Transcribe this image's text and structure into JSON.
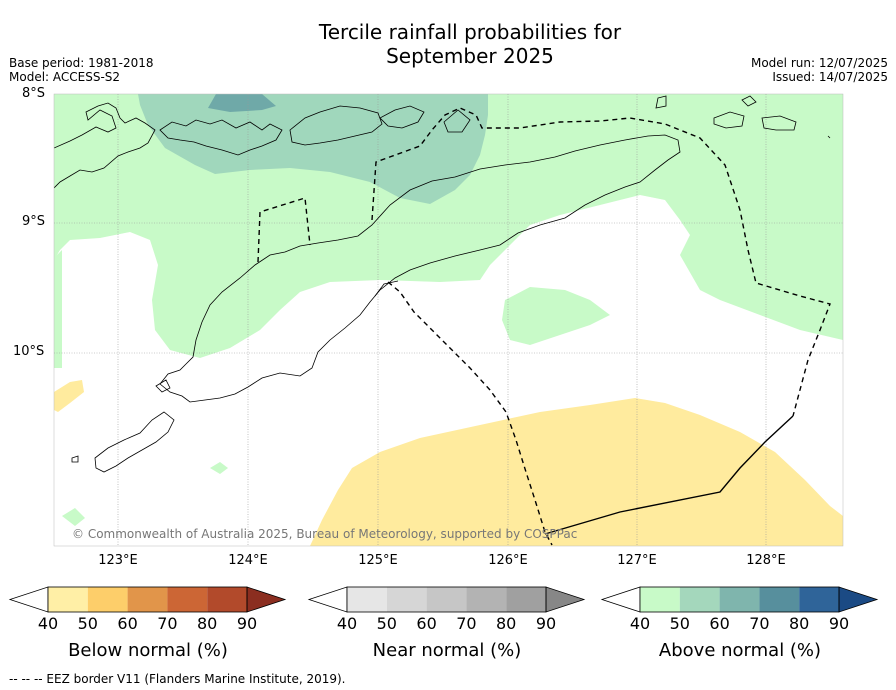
{
  "title": "Tercile rainfall probabilities for\nSeptember 2025",
  "meta_left": "Base period: 1981-2018\nModel: ACCESS-S2",
  "meta_right": "Model run: 12/07/2025\nIssued: 14/07/2025",
  "map": {
    "lat_labels": [
      "8°S",
      "9°S",
      "10°S"
    ],
    "lon_labels": [
      "123°E",
      "124°E",
      "125°E",
      "126°E",
      "127°E",
      "128°E"
    ],
    "copyright": "© Commonwealth of Australia 2025, Bureau of Meteorology, supported by COSPPac",
    "colors": {
      "above_40_50": "#c8fac8",
      "above_50_60": "#a0d7bc",
      "above_60_70": "#6fa9a8",
      "below_40_50": "#ffeb9e",
      "coastline": "#000000",
      "eez_border": "#000000"
    }
  },
  "colorbars": [
    {
      "title": "Below normal (%)",
      "ticks": [
        "40",
        "50",
        "60",
        "70",
        "80",
        "90"
      ],
      "colors": [
        "#ffffff",
        "#ffefa6",
        "#fdce6a",
        "#e1954a",
        "#cc6635",
        "#b24a2b",
        "#8b2e20"
      ]
    },
    {
      "title": "Near normal (%)",
      "ticks": [
        "40",
        "50",
        "60",
        "70",
        "80",
        "90"
      ],
      "colors": [
        "#ffffff",
        "#e6e6e6",
        "#d6d6d6",
        "#c6c6c6",
        "#b3b3b3",
        "#a0a0a0",
        "#878787"
      ]
    },
    {
      "title": "Above normal (%)",
      "ticks": [
        "40",
        "50",
        "60",
        "70",
        "80",
        "90"
      ],
      "colors": [
        "#ffffff",
        "#c8fac8",
        "#a4d7bc",
        "#7fb5ad",
        "#578f9d",
        "#2f6499",
        "#1b4a84"
      ]
    }
  ],
  "footnote": "--  --  -- EEZ border V11 (Flanders Marine Institute, 2019)."
}
